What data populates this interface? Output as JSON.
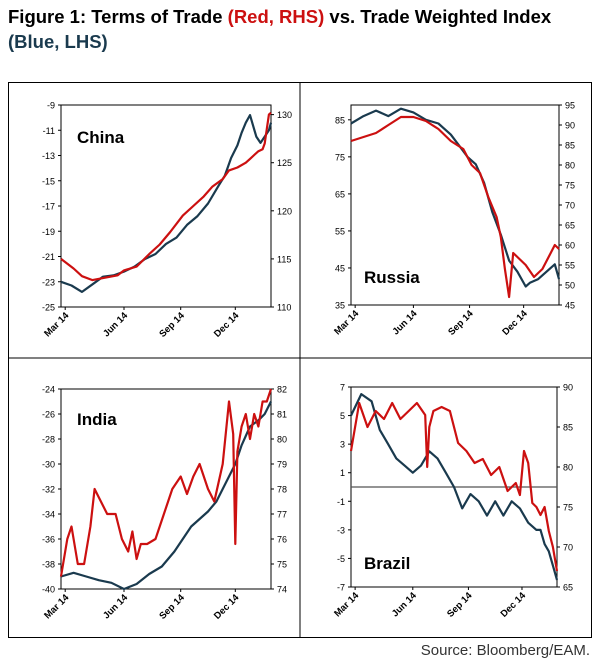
{
  "title": {
    "prefix": "Figure 1: Terms of Trade ",
    "red_part": "(Red, RHS)",
    "middle": " vs. Trade Weighted Index ",
    "blue_part": "(Blue, LHS)"
  },
  "source": "Source: Bloomberg/EAM.",
  "colors": {
    "red": "#cc1010",
    "blue": "#1a3a4e",
    "axis": "#000000"
  },
  "x_ticks": [
    "Mar 14",
    "Jun 14",
    "Sep 14",
    "Dec 14"
  ],
  "chart_data": [
    {
      "type": "line",
      "title": "China",
      "left_axis": {
        "ticks": [
          "-9",
          "-11",
          "-13",
          "-15",
          "-17",
          "-19",
          "-21",
          "-23",
          "-25"
        ],
        "range": [
          -25,
          -9
        ]
      },
      "right_axis": {
        "ticks": [
          "130",
          "125",
          "120",
          "115",
          "110"
        ],
        "range": [
          110,
          131
        ]
      },
      "series": [
        {
          "name": "Terms of Trade (RHS)",
          "axis": "right",
          "color": "red",
          "x": [
            0,
            0.06,
            0.1,
            0.15,
            0.2,
            0.27,
            0.3,
            0.36,
            0.42,
            0.47,
            0.52,
            0.58,
            0.63,
            0.68,
            0.72,
            0.77,
            0.8,
            0.84,
            0.88,
            0.9,
            0.92,
            0.94,
            0.96,
            0.97,
            0.98,
            0.99,
            1.0
          ],
          "y": [
            115,
            114,
            113.2,
            112.8,
            113,
            113.3,
            113.8,
            114.2,
            115.5,
            116.5,
            117.8,
            119.5,
            120.5,
            121.5,
            122.5,
            123.3,
            124.2,
            124.5,
            125,
            125.4,
            125.8,
            126.2,
            126.4,
            127,
            128.5,
            130,
            130.2
          ]
        },
        {
          "name": "Trade Weighted Index (LHS)",
          "axis": "left",
          "color": "blue",
          "x": [
            0,
            0.05,
            0.1,
            0.15,
            0.2,
            0.25,
            0.3,
            0.35,
            0.4,
            0.45,
            0.5,
            0.55,
            0.6,
            0.65,
            0.7,
            0.75,
            0.78,
            0.81,
            0.84,
            0.86,
            0.88,
            0.9,
            0.93,
            0.95,
            0.97,
            0.99,
            1.0
          ],
          "y": [
            -23,
            -23.3,
            -23.8,
            -23.2,
            -22.6,
            -22.5,
            -22.2,
            -21.8,
            -21.2,
            -20.8,
            -20,
            -19.5,
            -18.5,
            -17.8,
            -16.8,
            -15.4,
            -14.6,
            -13.2,
            -12.2,
            -11.2,
            -10.4,
            -9.8,
            -11.5,
            -12,
            -11.5,
            -11,
            -10.4
          ]
        }
      ]
    },
    {
      "type": "line",
      "title": "Russia",
      "left_axis": {
        "ticks": [
          "85",
          "75",
          "65",
          "55",
          "45",
          "35"
        ],
        "range": [
          35,
          89
        ]
      },
      "right_axis": {
        "ticks": [
          "95",
          "90",
          "85",
          "80",
          "75",
          "70",
          "65",
          "60",
          "55",
          "50",
          "45"
        ],
        "range": [
          45,
          95
        ]
      },
      "series": [
        {
          "name": "Terms of Trade (RHS)",
          "axis": "right",
          "color": "red",
          "x": [
            0,
            0.06,
            0.12,
            0.18,
            0.24,
            0.3,
            0.36,
            0.42,
            0.48,
            0.54,
            0.58,
            0.62,
            0.66,
            0.7,
            0.72,
            0.74,
            0.76,
            0.78,
            0.8,
            0.84,
            0.88,
            0.92,
            0.96,
            0.98,
            1.0
          ],
          "y": [
            86,
            87,
            88,
            90,
            92,
            92,
            91,
            89,
            86,
            84,
            80,
            78,
            72,
            67,
            62,
            54,
            47,
            58,
            57,
            55,
            52,
            54,
            58,
            60,
            59
          ]
        },
        {
          "name": "Trade Weighted Index (LHS)",
          "axis": "left",
          "color": "blue",
          "x": [
            0,
            0.06,
            0.12,
            0.18,
            0.24,
            0.3,
            0.36,
            0.42,
            0.48,
            0.52,
            0.56,
            0.6,
            0.64,
            0.68,
            0.72,
            0.76,
            0.8,
            0.84,
            0.86,
            0.9,
            0.94,
            0.98,
            1.0
          ],
          "y": [
            84,
            86,
            87.5,
            86,
            88,
            87,
            85,
            84,
            81,
            78,
            75,
            73,
            68,
            60,
            54,
            47,
            44,
            40,
            41,
            42,
            44,
            46,
            42
          ]
        }
      ]
    },
    {
      "type": "line",
      "title": "India",
      "left_axis": {
        "ticks": [
          "-24",
          "-26",
          "-28",
          "-30",
          "-32",
          "-34",
          "-36",
          "-38",
          "-40"
        ],
        "range": [
          -40,
          -24
        ]
      },
      "right_axis": {
        "ticks": [
          "82",
          "81",
          "80",
          "79",
          "78",
          "77",
          "76",
          "75",
          "74"
        ],
        "range": [
          74,
          82
        ]
      },
      "series": [
        {
          "name": "Terms of Trade (RHS)",
          "axis": "right",
          "color": "red",
          "x": [
            0,
            0.03,
            0.05,
            0.08,
            0.11,
            0.14,
            0.16,
            0.19,
            0.22,
            0.26,
            0.29,
            0.32,
            0.34,
            0.36,
            0.38,
            0.41,
            0.45,
            0.49,
            0.53,
            0.57,
            0.6,
            0.63,
            0.66,
            0.7,
            0.73,
            0.77,
            0.8,
            0.82,
            0.83,
            0.84,
            0.86,
            0.88,
            0.9,
            0.92,
            0.94,
            0.96,
            0.98,
            1.0
          ],
          "y": [
            74.5,
            76,
            76.5,
            75,
            75,
            76.5,
            78,
            77.5,
            77,
            77,
            76,
            75.5,
            76.3,
            75.2,
            75.8,
            75.8,
            76,
            77,
            78,
            78.5,
            77.8,
            78.5,
            79,
            78,
            77.5,
            79,
            81.5,
            80.2,
            75.8,
            79.5,
            80.5,
            81,
            80,
            81,
            80.5,
            81.5,
            81.5,
            82
          ]
        },
        {
          "name": "Trade Weighted Index (LHS)",
          "axis": "left",
          "color": "blue",
          "x": [
            0,
            0.06,
            0.12,
            0.18,
            0.24,
            0.3,
            0.36,
            0.42,
            0.48,
            0.54,
            0.58,
            0.62,
            0.66,
            0.7,
            0.74,
            0.77,
            0.8,
            0.83,
            0.86,
            0.9,
            0.94,
            0.97,
            1.0
          ],
          "y": [
            -39,
            -38.7,
            -39,
            -39.3,
            -39.5,
            -40,
            -39.6,
            -38.8,
            -38.2,
            -37,
            -36,
            -35,
            -34.4,
            -33.8,
            -33,
            -32,
            -31,
            -30,
            -28.5,
            -27,
            -26.5,
            -26,
            -25
          ]
        }
      ]
    },
    {
      "type": "line",
      "title": "Brazil",
      "left_axis": {
        "ticks": [
          "7",
          "5",
          "3",
          "1",
          "-1",
          "-3",
          "-5",
          "-7"
        ],
        "range": [
          -7,
          7
        ]
      },
      "right_axis": {
        "ticks": [
          "90",
          "85",
          "80",
          "75",
          "70",
          "65"
        ],
        "range": [
          65,
          90
        ]
      },
      "reference_line_left": 0,
      "series": [
        {
          "name": "Terms of Trade (RHS)",
          "axis": "right",
          "color": "red",
          "x": [
            0,
            0.04,
            0.08,
            0.12,
            0.16,
            0.2,
            0.24,
            0.28,
            0.32,
            0.36,
            0.37,
            0.38,
            0.4,
            0.44,
            0.48,
            0.52,
            0.56,
            0.6,
            0.64,
            0.68,
            0.72,
            0.76,
            0.8,
            0.82,
            0.84,
            0.86,
            0.88,
            0.9,
            0.92,
            0.94,
            0.96,
            0.98,
            1.0
          ],
          "y": [
            82,
            88,
            85,
            87,
            86,
            88,
            86,
            87,
            88,
            86.5,
            80,
            85,
            87,
            87.5,
            87,
            83,
            82,
            80.5,
            81,
            79,
            80,
            77,
            78,
            76.5,
            82,
            80.5,
            75.5,
            75,
            74,
            75,
            72,
            70,
            67
          ]
        },
        {
          "name": "Trade Weighted Index (LHS)",
          "axis": "left",
          "color": "blue",
          "x": [
            0,
            0.05,
            0.1,
            0.14,
            0.18,
            0.22,
            0.26,
            0.3,
            0.34,
            0.38,
            0.42,
            0.46,
            0.5,
            0.54,
            0.58,
            0.62,
            0.66,
            0.7,
            0.74,
            0.78,
            0.82,
            0.86,
            0.9,
            0.92,
            0.94,
            0.96,
            0.98,
            1.0
          ],
          "y": [
            5,
            6.5,
            6,
            4,
            3,
            2,
            1.5,
            1,
            1.5,
            2.5,
            2,
            1,
            0,
            -1.5,
            -0.5,
            -1,
            -2,
            -1,
            -2,
            -1,
            -1.5,
            -2.5,
            -3,
            -3,
            -4,
            -4.5,
            -5.5,
            -6.5
          ]
        }
      ]
    }
  ]
}
